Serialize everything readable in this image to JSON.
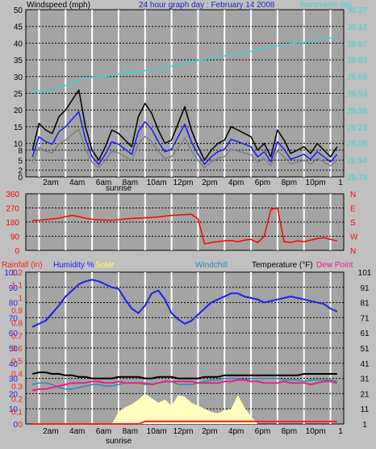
{
  "header": {
    "wind_label": "Windspeed (mph)",
    "title": "24 hour graph day : February 14 2008",
    "baro_label": "Barometer (in)"
  },
  "time_ticks": [
    "2am",
    "4am",
    "6am",
    "8am",
    "10am",
    "12pm",
    "2pm",
    "4pm",
    "6pm",
    "8pm",
    "10pm"
  ],
  "end_tick": "1",
  "sunrise_label": "sunrise",
  "colors": {
    "panel_bg": "#a4a4a4",
    "frame_bg": "#c0c0c0",
    "wind": "#000000",
    "wind_gust": "#808080",
    "wind_avg": "#1a1aff",
    "baro": "#3ad4d4",
    "dir": "#ff0000",
    "humidity": "#1f1ff0",
    "temp": "#000000",
    "windchill": "#2a8ab8",
    "dewpoint": "#ee1c8c",
    "solar": "#ffffc0",
    "rain": "#ff2020"
  },
  "legend3": {
    "rainfall": "Rainfall (in)",
    "humidity": "Humidity %",
    "solar": "Solar",
    "windchill": "Windchill",
    "temperature": "Temperature (°F)",
    "dewpoint": "Dew Point"
  },
  "chart_data": [
    {
      "type": "line",
      "title": "24 hour graph day : February 14 2008",
      "x_ticks": [
        "2am",
        "4am",
        "6am",
        "8am",
        "10am",
        "12pm",
        "2pm",
        "4pm",
        "6pm",
        "8pm",
        "10pm",
        "1"
      ],
      "hours": [
        0.5,
        1,
        1.5,
        2,
        2.5,
        3,
        3.5,
        4,
        4.5,
        5,
        5.5,
        6,
        6.5,
        7,
        7.5,
        8,
        8.5,
        9,
        9.5,
        10,
        10.5,
        11,
        11.5,
        12,
        12.5,
        13,
        13.5,
        14,
        14.5,
        15,
        15.5,
        16,
        16.5,
        17,
        17.5,
        18,
        18.5,
        19,
        19.5,
        20,
        20.5,
        21,
        21.5,
        22,
        22.5,
        23,
        23.5
      ],
      "y_left": {
        "label": "Windspeed (mph)",
        "ticks": [
          0,
          2,
          5,
          8,
          10,
          15,
          20,
          25,
          30,
          35,
          40,
          45,
          50
        ],
        "ylim": [
          0,
          50
        ]
      },
      "y_right": {
        "label": "Barometer (in)",
        "ticks": [
          "28.79",
          "28.94",
          "29.09",
          "29.23",
          "29.38",
          "29.53",
          "29.68",
          "29.83",
          "29.97",
          "30.12",
          "30.27"
        ],
        "ylim": [
          28.79,
          30.27
        ]
      },
      "series": [
        {
          "name": "Windspeed (mph)",
          "axis": "left",
          "values": [
            8,
            16,
            14,
            13,
            18,
            20,
            23,
            26,
            15,
            8,
            5,
            9,
            14,
            13,
            11,
            9,
            18,
            22,
            19,
            14,
            10,
            11,
            16,
            21,
            14,
            9,
            5,
            8,
            10,
            11,
            15,
            14,
            13,
            12,
            8,
            10,
            6,
            14,
            11,
            7,
            8,
            9,
            7,
            10,
            8,
            6,
            9
          ]
        },
        {
          "name": "Barometer (in)",
          "axis": "right",
          "values": [
            29.55,
            29.55,
            29.56,
            29.57,
            29.58,
            29.6,
            29.62,
            29.64,
            29.66,
            29.67,
            29.68,
            29.68,
            29.69,
            29.7,
            29.71,
            29.71,
            29.72,
            29.73,
            29.74,
            29.75,
            29.76,
            29.77,
            29.78,
            29.79,
            29.81,
            29.82,
            29.83,
            29.84,
            29.85,
            29.86,
            29.87,
            29.88,
            29.89,
            29.9,
            29.92,
            29.93,
            29.94,
            29.95,
            29.96,
            29.97,
            29.98,
            29.98,
            29.99,
            30.0,
            30.01,
            30.02,
            30.02
          ]
        }
      ]
    },
    {
      "type": "line",
      "x_ticks": [
        "2am",
        "4am",
        "6am",
        "8am",
        "10am",
        "12pm",
        "2pm",
        "4pm",
        "6pm",
        "8pm",
        "10pm",
        "1"
      ],
      "y_left": {
        "ticks": [
          0,
          90,
          180,
          270,
          360
        ],
        "ylim": [
          0,
          360
        ]
      },
      "y_right": {
        "ticks": [
          "N",
          "W",
          "S",
          "E",
          "N"
        ]
      },
      "series": [
        {
          "name": "Wind direction",
          "values": [
            190,
            192,
            196,
            200,
            205,
            215,
            222,
            215,
            205,
            198,
            195,
            193,
            192,
            195,
            200,
            203,
            205,
            207,
            210,
            213,
            218,
            222,
            225,
            228,
            230,
            200,
            40,
            50,
            55,
            60,
            62,
            55,
            65,
            70,
            50,
            90,
            260,
            270,
            55,
            50,
            60,
            55,
            65,
            75,
            80,
            70,
            60
          ]
        }
      ]
    },
    {
      "type": "line",
      "x_ticks": [
        "2am",
        "4am",
        "6am",
        "8am",
        "10am",
        "12pm",
        "2pm",
        "4pm",
        "6pm",
        "8pm",
        "10pm",
        "1"
      ],
      "y_left": {
        "label": "Rainfall (in)",
        "ticks": [
          "0",
          "0.1",
          "0.2",
          "0.3",
          "0.4",
          "0.5",
          "0.6",
          "0.7",
          "0.8",
          "0.9",
          "1",
          "1.1",
          "1.2"
        ],
        "ylim": [
          0,
          1.2
        ]
      },
      "y_left2": {
        "label": "Humidity %",
        "ticks": [
          0,
          10,
          20,
          30,
          40,
          50,
          60,
          70,
          80,
          90,
          100
        ],
        "ylim": [
          0,
          100
        ]
      },
      "y_right": {
        "label": "Temperature (°F)",
        "ticks": [
          1,
          11,
          21,
          31,
          41,
          51,
          61,
          71,
          81,
          91,
          101
        ],
        "ylim": [
          1,
          101
        ]
      },
      "series": [
        {
          "name": "Humidity %",
          "axis": "left2",
          "values": [
            64,
            66,
            68,
            73,
            78,
            84,
            88,
            92,
            94,
            95,
            94,
            92,
            90,
            89,
            82,
            76,
            73,
            78,
            86,
            88,
            82,
            73,
            69,
            66,
            68,
            72,
            76,
            80,
            82,
            84,
            86,
            86,
            84,
            83,
            82,
            80,
            81,
            82,
            83,
            84,
            83,
            82,
            81,
            80,
            79,
            76,
            74
          ]
        },
        {
          "name": "Temperature (°F)",
          "axis": "right",
          "values": [
            34,
            35,
            35,
            34,
            34,
            33,
            33,
            32,
            32,
            31,
            31,
            31,
            31,
            32,
            32,
            32,
            32,
            31,
            31,
            32,
            32,
            32,
            31,
            31,
            31,
            31,
            32,
            32,
            32,
            33,
            33,
            33,
            33,
            33,
            33,
            33,
            33,
            33,
            33,
            33,
            33,
            34,
            34,
            34,
            34,
            34,
            34
          ]
        },
        {
          "name": "Windchill",
          "axis": "right",
          "values": [
            27,
            28,
            28,
            27,
            25,
            24,
            24,
            25,
            26,
            27,
            27,
            26,
            26,
            27,
            28,
            28,
            28,
            27,
            27,
            28,
            29,
            29,
            27,
            27,
            27,
            28,
            29,
            30,
            30,
            31,
            31,
            31,
            30,
            31,
            31,
            31,
            31,
            31,
            30,
            30,
            30,
            29,
            30,
            30,
            30,
            30,
            29
          ]
        },
        {
          "name": "Dew Point",
          "axis": "right",
          "values": [
            23,
            24,
            24,
            25,
            26,
            27,
            28,
            28,
            28,
            29,
            29,
            28,
            28,
            29,
            28,
            28,
            28,
            28,
            27,
            28,
            29,
            29,
            29,
            29,
            29,
            28,
            28,
            28,
            28,
            29,
            29,
            30,
            30,
            29,
            29,
            28,
            28,
            28,
            29,
            28,
            28,
            28,
            27,
            28,
            29,
            29,
            28
          ]
        },
        {
          "name": "Solar",
          "axis": "right",
          "values": [
            1,
            1,
            1,
            1,
            1,
            1,
            1,
            1,
            1,
            1,
            1,
            1,
            1,
            9,
            12,
            14,
            17,
            21,
            18,
            15,
            17,
            13,
            20,
            19,
            15,
            13,
            11,
            9,
            8,
            10,
            11,
            20,
            12,
            6,
            1,
            1,
            1,
            1,
            1,
            1,
            1,
            1,
            1,
            1,
            1,
            1,
            1
          ]
        },
        {
          "name": "Rainfall (in)",
          "axis": "left",
          "values": [
            0,
            0,
            0,
            0,
            0,
            0,
            0,
            0,
            0,
            0,
            0,
            0,
            0,
            0,
            0,
            0,
            0,
            0.02,
            0.02,
            0.02,
            0.02,
            0.02,
            0.02,
            0.02,
            0.02,
            0.02,
            0.02,
            0.02,
            0.02,
            0.02,
            0.02,
            0.02,
            0.02,
            0.02,
            0.02,
            0.02,
            0.02,
            0.02,
            0.02,
            0.02,
            0.02,
            0.02,
            0.02,
            0.02,
            0.02,
            0.02,
            0.02
          ]
        }
      ]
    }
  ]
}
